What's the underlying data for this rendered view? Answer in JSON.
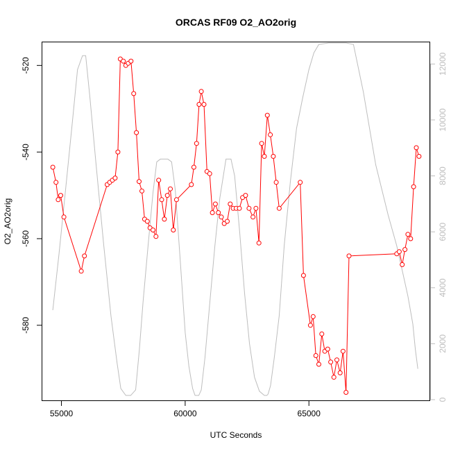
{
  "chart_data": {
    "type": "line",
    "title": "ORCAS RF09 O2_AO2orig",
    "xlabel": "UTC Seconds",
    "ylabel": "O2_AO2orig",
    "xlim": [
      54200,
      69900
    ],
    "ylim": [
      -597.5,
      -514.5
    ],
    "y2lim": [
      -50,
      12800
    ],
    "x_ticks": [
      55000,
      60000,
      65000
    ],
    "x_tick_labels": [
      "55000",
      "60000",
      "65000"
    ],
    "y_ticks": [
      -520,
      -540,
      -560,
      -580
    ],
    "y_tick_labels": [
      "-520",
      "-540",
      "-560",
      "-580"
    ],
    "y2_ticks": [
      0,
      2000,
      4000,
      6000,
      8000,
      10000,
      12000
    ],
    "y2_tick_labels": [
      "0",
      "2000",
      "4000",
      "6000",
      "8000",
      "10000",
      "12000"
    ],
    "grid": false,
    "colors": {
      "o2_series": "#ff0000",
      "altitude_series": "#bdbdbd",
      "axes": "#000000",
      "right_axis": "#bdbdbd"
    },
    "series": [
      {
        "axis": "left",
        "style": "line-points",
        "x": [
          54650,
          54780,
          54870,
          54970,
          55100,
          55800,
          55930,
          56850,
          56950,
          57060,
          57170,
          57280,
          57380,
          57500,
          57600,
          57700,
          57810,
          57920,
          58030,
          58140,
          58250,
          58360,
          58470,
          58580,
          58700,
          58820,
          58930,
          59050,
          59160,
          59280,
          59400,
          59520,
          59650,
          60250,
          60350,
          60460,
          60560,
          60650,
          60760,
          60880,
          60990,
          61100,
          61220,
          61340,
          61460,
          61580,
          61700,
          61820,
          61940,
          62060,
          62190,
          62320,
          62440,
          62580,
          62740,
          62860,
          62980,
          63090,
          63200,
          63320,
          63440,
          63560,
          63680,
          63800,
          64650,
          64780,
          65060,
          65170,
          65280,
          65400,
          65520,
          65640,
          65760,
          65880,
          66010,
          66130,
          66260,
          66380,
          66500,
          66620,
          68550,
          68650,
          68770,
          68880,
          69000,
          69110,
          69230,
          69340,
          69450
        ],
        "y": [
          -543.5,
          -547,
          -551,
          -550,
          -555,
          -567.5,
          -564,
          -547.5,
          -547,
          -546.5,
          -546,
          -540,
          -518.5,
          -519,
          -520,
          -519.5,
          -519,
          -526.5,
          -535.5,
          -546.8,
          -549,
          -555.5,
          -556,
          -557.5,
          -558,
          -559.5,
          -546.5,
          -551,
          -555.5,
          -550,
          -548.5,
          -558,
          -551,
          -547.5,
          -543.5,
          -538,
          -529,
          -526,
          -529,
          -544.5,
          -545,
          -554,
          -552,
          -554,
          -555,
          -556.5,
          -556,
          -552,
          -553,
          -553,
          -553,
          -550.5,
          -550,
          -553,
          -555,
          -553,
          -561,
          -538,
          -541,
          -531.5,
          -536,
          -541,
          -547,
          -553,
          -547,
          -568.5,
          -580,
          -578,
          -587,
          -589,
          -582,
          -586,
          -585.5,
          -588.5,
          -592,
          -588,
          -591,
          -586,
          -595.5,
          -564,
          -563.5,
          -563,
          -566,
          -562.5,
          -559,
          -560,
          -548,
          -539,
          -541
        ]
      },
      {
        "axis": "right",
        "style": "line",
        "x": [
          54650,
          54900,
          55200,
          55450,
          55650,
          55850,
          55980,
          56150,
          56400,
          56700,
          57000,
          57250,
          57400,
          57600,
          57800,
          58000,
          58150,
          58300,
          58500,
          58700,
          58850,
          59000,
          59300,
          59450,
          59600,
          59800,
          60000,
          60150,
          60300,
          60400,
          60480,
          60550,
          60650,
          60800,
          61000,
          61200,
          61400,
          61650,
          61750,
          61850,
          62000,
          62200,
          62400,
          62600,
          62800,
          63000,
          63200,
          63300,
          63350,
          63450,
          63600,
          63800,
          64000,
          64250,
          64500,
          64750,
          65000,
          65200,
          65400,
          65800,
          66200,
          66500,
          66800,
          67200,
          67700,
          68200,
          68550,
          68800,
          69000,
          69200,
          69300,
          69400
        ],
        "y": [
          3200,
          5200,
          7800,
          10000,
          11800,
          12300,
          12300,
          10800,
          8400,
          5600,
          3000,
          1300,
          400,
          150,
          150,
          350,
          1800,
          3500,
          5500,
          7400,
          8500,
          8600,
          8600,
          8500,
          7500,
          5000,
          2400,
          1200,
          400,
          150,
          150,
          150,
          350,
          1500,
          3500,
          5500,
          7200,
          8600,
          8600,
          8600,
          8000,
          6000,
          3800,
          2000,
          800,
          300,
          150,
          150,
          200,
          500,
          1500,
          3000,
          5500,
          7800,
          9700,
          10800,
          11800,
          12400,
          12700,
          12750,
          12750,
          12750,
          12700,
          11000,
          8400,
          6600,
          5500,
          4500,
          3700,
          2700,
          1800,
          1100
        ]
      }
    ]
  }
}
